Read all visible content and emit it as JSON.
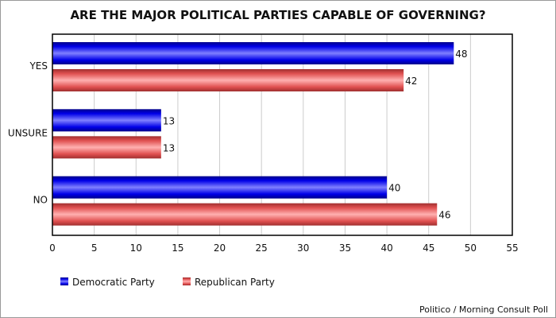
{
  "chart_data": {
    "type": "bar",
    "orientation": "horizontal",
    "title": "ARE THE MAJOR POLITICAL PARTIES CAPABLE OF GOVERNING?",
    "categories": [
      "YES",
      "UNSURE",
      "NO"
    ],
    "series": [
      {
        "name": "Democratic Party",
        "values": [
          48,
          13,
          40
        ],
        "color": "#0000e0"
      },
      {
        "name": "Republican Party",
        "values": [
          42,
          13,
          46
        ],
        "color": "#e05050"
      }
    ],
    "xlim": [
      0,
      55
    ],
    "xticks": [
      0,
      5,
      10,
      15,
      20,
      25,
      30,
      35,
      40,
      45,
      50,
      55
    ],
    "grid": true,
    "legend": "bottom-left",
    "source": "Politico / Morning Consult Poll"
  }
}
